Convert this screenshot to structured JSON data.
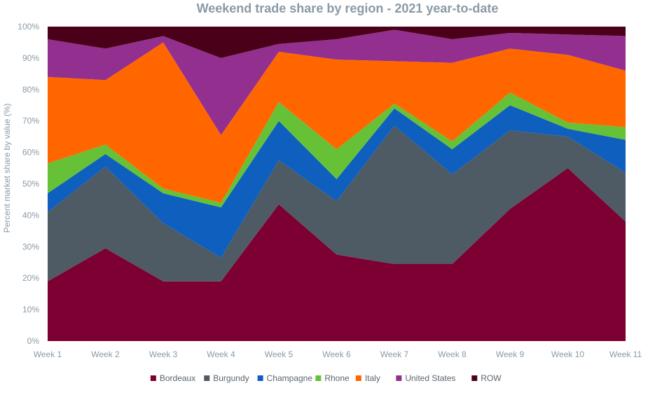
{
  "chart_data": {
    "type": "area",
    "stacked": true,
    "title": "Weekend trade share by region - 2021 year-to-date",
    "xlabel": "",
    "ylabel": "Percent market share by value (%)",
    "ylim": [
      0,
      100
    ],
    "yticks": [
      "0%",
      "10%",
      "20%",
      "30%",
      "40%",
      "50%",
      "60%",
      "70%",
      "80%",
      "90%",
      "100%"
    ],
    "categories": [
      "Week 1",
      "Week 2",
      "Week 3",
      "Week 4",
      "Week 5",
      "Week 6",
      "Week 7",
      "Week 8",
      "Week 9",
      "Week 10",
      "Week 11"
    ],
    "legend_position": "bottom",
    "grid": false,
    "series": [
      {
        "name": "Bordeaux",
        "color": "#7d0033",
        "values": [
          19,
          29.5,
          19,
          19,
          43.5,
          27.5,
          24.5,
          24.5,
          42,
          55,
          38
        ]
      },
      {
        "name": "Burgundy",
        "color": "#4e5a64",
        "values": [
          22,
          26,
          18.5,
          7.5,
          14,
          17,
          44,
          28.5,
          25,
          10,
          15.5
        ]
      },
      {
        "name": "Champagne",
        "color": "#0f5fbe",
        "values": [
          6,
          4,
          9.5,
          16,
          12.5,
          7,
          5.5,
          8,
          8,
          2.5,
          10.5
        ]
      },
      {
        "name": "Rhone",
        "color": "#66c136",
        "values": [
          9.5,
          3,
          1.5,
          1.5,
          6,
          9.5,
          1.5,
          2.5,
          4,
          2,
          4
        ]
      },
      {
        "name": "Italy",
        "color": "#ff6600",
        "values": [
          27.5,
          20.5,
          46.5,
          21.5,
          16,
          28.5,
          13.5,
          25,
          14,
          21.5,
          18
        ]
      },
      {
        "name": "United States",
        "color": "#932f8e",
        "values": [
          12,
          10,
          2,
          24.5,
          2.5,
          6.5,
          10,
          7.5,
          5,
          6.5,
          11
        ]
      },
      {
        "name": "ROW",
        "color": "#4a0018",
        "values": [
          4,
          7,
          3,
          10,
          5.5,
          4,
          1,
          4,
          2,
          2.5,
          3
        ]
      }
    ]
  }
}
